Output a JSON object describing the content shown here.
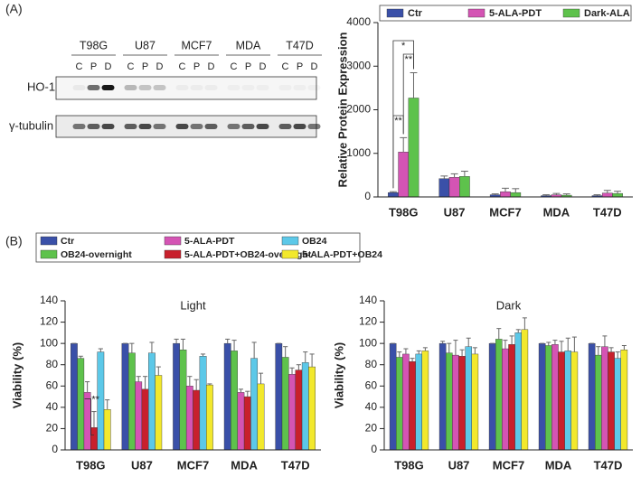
{
  "figure": {
    "panel_labels": [
      "(A)",
      "(B)"
    ]
  },
  "blot": {
    "cell_lines": [
      "T98G",
      "U87",
      "MCF7",
      "MDA",
      "T47D"
    ],
    "lanes": [
      "C",
      "P",
      "D"
    ],
    "rows": [
      "HO-1",
      "γ-tubulin"
    ]
  },
  "chart_data": [
    {
      "type": "bar",
      "y_label": "Relative Protein Expression",
      "categories": [
        "T98G",
        "U87",
        "MCF7",
        "MDA",
        "T47D"
      ],
      "series": [
        {
          "name": "Ctr",
          "color": "#3a50a8",
          "values": [
            100,
            420,
            50,
            30,
            30
          ],
          "errors": [
            20,
            60,
            20,
            20,
            20
          ]
        },
        {
          "name": "5-ALA-PDT",
          "color": "#d454b4",
          "values": [
            1030,
            450,
            120,
            50,
            90
          ],
          "errors": [
            330,
            80,
            80,
            30,
            60
          ]
        },
        {
          "name": "Dark-ALA",
          "color": "#5ec24c",
          "values": [
            2270,
            470,
            100,
            40,
            80
          ],
          "errors": [
            580,
            120,
            90,
            30,
            50
          ]
        }
      ],
      "ylim": [
        0,
        4000
      ],
      "yticks": [
        0,
        1000,
        2000,
        3000,
        4000
      ],
      "annotations": [
        "*",
        "**",
        "**"
      ],
      "legend": "top"
    },
    {
      "type": "bar",
      "title": "Light",
      "y_label": "Viability (%)",
      "categories": [
        "T98G",
        "U87",
        "MCF7",
        "MDA",
        "T47D"
      ],
      "series": [
        {
          "name": "Ctr",
          "color": "#3a50a8",
          "values": [
            100,
            100,
            100,
            100,
            100
          ],
          "errors": [
            0,
            0,
            4,
            4,
            0
          ]
        },
        {
          "name": "OB24-overnight",
          "color": "#5ec24c",
          "values": [
            86,
            91,
            94,
            93,
            87
          ],
          "errors": [
            2,
            9,
            10,
            10,
            10
          ]
        },
        {
          "name": "5-ALA-PDT",
          "color": "#d454b4",
          "values": [
            54,
            64,
            60,
            54,
            71
          ],
          "errors": [
            10,
            5,
            9,
            3,
            6
          ]
        },
        {
          "name": "5-ALA-PDT+OB24-overnight",
          "color": "#c8202c",
          "values": [
            21,
            57,
            56,
            50,
            75
          ],
          "errors": [
            15,
            12,
            10,
            5,
            5
          ]
        },
        {
          "name": "OB24",
          "color": "#5cc8e8",
          "values": [
            92,
            91,
            88,
            86,
            82
          ],
          "errors": [
            3,
            10,
            2,
            15,
            10
          ]
        },
        {
          "name": "5-ALA-PDT+OB24",
          "color": "#f2e82c",
          "values": [
            38,
            70,
            61,
            62,
            78
          ],
          "errors": [
            9,
            8,
            1,
            10,
            12
          ]
        }
      ],
      "ylim": [
        0,
        140
      ],
      "yticks": [
        0,
        20,
        40,
        60,
        80,
        100,
        120,
        140
      ],
      "annotations": [
        "**"
      ],
      "legend": "above"
    },
    {
      "type": "bar",
      "title": "Dark",
      "y_label": "Viability (%)",
      "categories": [
        "T98G",
        "U87",
        "MCF7",
        "MDA",
        "T47D"
      ],
      "series": [
        {
          "color": "#3a50a8",
          "values": [
            100,
            100,
            100,
            100,
            100
          ],
          "errors": [
            0,
            2,
            0,
            0,
            0
          ]
        },
        {
          "color": "#5ec24c",
          "values": [
            87,
            91,
            104,
            98,
            89
          ],
          "errors": [
            5,
            9,
            10,
            3,
            8
          ]
        },
        {
          "color": "#d454b4",
          "values": [
            90,
            89,
            95,
            99,
            97
          ],
          "errors": [
            5,
            14,
            8,
            4,
            10
          ]
        },
        {
          "color": "#c8202c",
          "values": [
            83,
            88,
            99,
            92,
            92
          ],
          "errors": [
            3,
            6,
            8,
            10,
            4
          ]
        },
        {
          "color": "#5cc8e8",
          "values": [
            90,
            97,
            110,
            93,
            86
          ],
          "errors": [
            3,
            8,
            3,
            12,
            6
          ]
        },
        {
          "color": "#f2e82c",
          "values": [
            93,
            90,
            113,
            92,
            94
          ],
          "errors": [
            3,
            6,
            11,
            14,
            4
          ]
        }
      ],
      "ylim": [
        0,
        140
      ],
      "yticks": [
        0,
        20,
        40,
        60,
        80,
        100,
        120,
        140
      ]
    }
  ]
}
